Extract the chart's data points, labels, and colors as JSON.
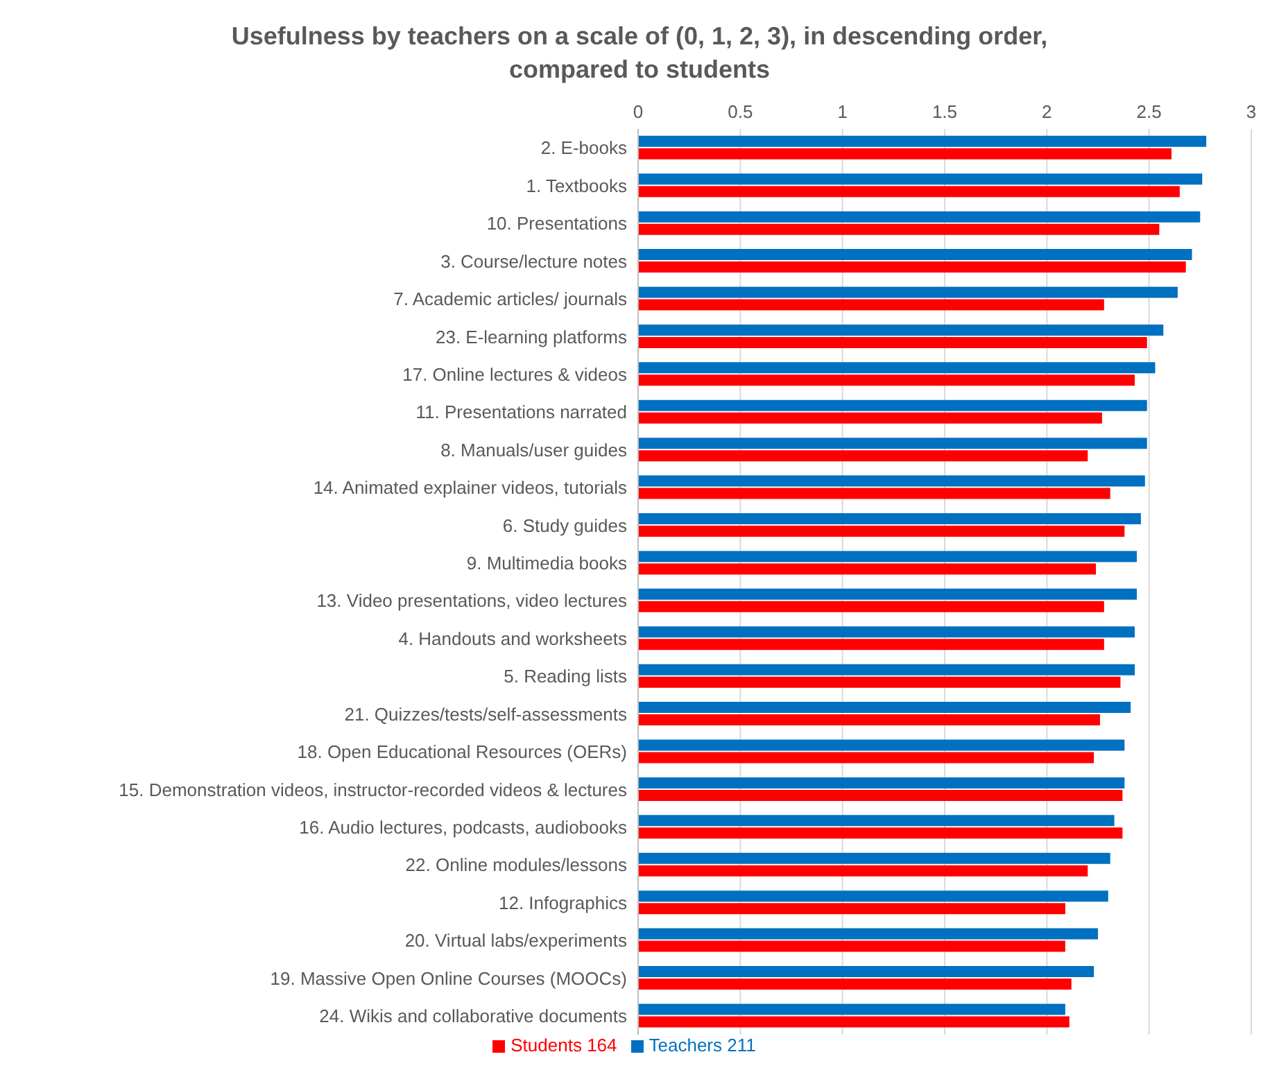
{
  "chart_data": {
    "type": "bar",
    "orientation": "horizontal",
    "title": "Usefulness by teachers on a scale of (0, 1, 2, 3), in descending order, compared to students",
    "categories": [
      "2. E-books",
      "1. Textbooks",
      "10. Presentations",
      "3. Course/lecture notes",
      "7. Academic articles/ journals",
      "23. E-learning platforms",
      "17. Online lectures & videos",
      "11. Presentations narrated",
      "8. Manuals/user guides",
      "14. Animated explainer videos, tutorials",
      "6. Study guides",
      "9. Multimedia books",
      "13. Video presentations, video lectures",
      "4. Handouts and worksheets",
      "5. Reading lists",
      "21. Quizzes/tests/self-assessments",
      "18. Open Educational Resources (OERs)",
      "15. Demonstration videos, instructor-recorded videos & lectures",
      "16. Audio lectures, podcasts, audiobooks",
      "22. Online modules/lessons",
      "12. Infographics",
      "20. Virtual labs/experiments",
      "19. Massive Open Online Courses (MOOCs)",
      "24. Wikis and collaborative documents"
    ],
    "series": [
      {
        "name": "Teachers 211",
        "color": "#0070c0",
        "values": [
          2.78,
          2.76,
          2.75,
          2.71,
          2.64,
          2.57,
          2.53,
          2.49,
          2.49,
          2.48,
          2.46,
          2.44,
          2.44,
          2.43,
          2.43,
          2.41,
          2.38,
          2.38,
          2.33,
          2.31,
          2.3,
          2.25,
          2.23,
          2.09
        ]
      },
      {
        "name": "Students 164",
        "color": "#ff0000",
        "values": [
          2.61,
          2.65,
          2.55,
          2.68,
          2.28,
          2.49,
          2.43,
          2.27,
          2.2,
          2.31,
          2.38,
          2.24,
          2.28,
          2.28,
          2.36,
          2.26,
          2.23,
          2.37,
          2.37,
          2.2,
          2.09,
          2.09,
          2.12,
          2.11
        ]
      }
    ],
    "xlim": [
      0,
      3
    ],
    "xticks": [
      0,
      0.5,
      1,
      1.5,
      2,
      2.5,
      3
    ],
    "grid": "x",
    "legend": "bottom"
  }
}
